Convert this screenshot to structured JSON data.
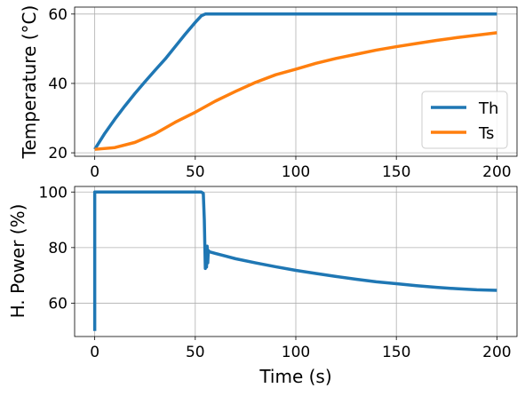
{
  "chart_data": [
    {
      "type": "line",
      "title": "",
      "xlabel": "",
      "ylabel": "Temperature (°C)",
      "xlim": [
        -10,
        210
      ],
      "ylim": [
        19,
        62
      ],
      "xticks": [
        0,
        50,
        100,
        150,
        200
      ],
      "yticks": [
        20,
        40,
        60
      ],
      "grid": true,
      "legend": "lower-right",
      "series": [
        {
          "name": "Th",
          "color": "#1f77b4",
          "points": [
            [
              0,
              21
            ],
            [
              5,
              25.6
            ],
            [
              10,
              29.7
            ],
            [
              15,
              33.5
            ],
            [
              20,
              37.1
            ],
            [
              25,
              40.5
            ],
            [
              30,
              43.8
            ],
            [
              35,
              47.0
            ],
            [
              40,
              50.6
            ],
            [
              45,
              54.2
            ],
            [
              50,
              57.6
            ],
            [
              53,
              59.5
            ],
            [
              55,
              60
            ],
            [
              100,
              60
            ],
            [
              150,
              60
            ],
            [
              200,
              60
            ]
          ]
        },
        {
          "name": "Ts",
          "color": "#ff7f0e",
          "points": [
            [
              0,
              21
            ],
            [
              10,
              21.5
            ],
            [
              20,
              23
            ],
            [
              30,
              25.5
            ],
            [
              40,
              28.8
            ],
            [
              50,
              31.7
            ],
            [
              60,
              34.9
            ],
            [
              70,
              37.7
            ],
            [
              80,
              40.3
            ],
            [
              90,
              42.5
            ],
            [
              100,
              44.1
            ],
            [
              110,
              45.8
            ],
            [
              120,
              47.2
            ],
            [
              130,
              48.4
            ],
            [
              140,
              49.6
            ],
            [
              150,
              50.6
            ],
            [
              160,
              51.5
            ],
            [
              170,
              52.4
            ],
            [
              180,
              53.2
            ],
            [
              190,
              53.9
            ],
            [
              200,
              54.6
            ]
          ]
        }
      ]
    },
    {
      "type": "line",
      "title": "",
      "xlabel": "Time (s)",
      "ylabel": "H. Power (%)",
      "xlim": [
        -10,
        210
      ],
      "ylim": [
        48,
        102
      ],
      "xticks": [
        0,
        50,
        100,
        150,
        200
      ],
      "yticks": [
        60,
        80,
        100
      ],
      "grid": true,
      "series": [
        {
          "name": "",
          "color": "#1f77b4",
          "points": [
            [
              0,
              50
            ],
            [
              0,
              100
            ],
            [
              53,
              100
            ],
            [
              54,
              99.5
            ],
            [
              54.5,
              90
            ],
            [
              55,
              72.5
            ],
            [
              55.3,
              80.5
            ],
            [
              55.6,
              73
            ],
            [
              55.9,
              80.5
            ],
            [
              56.2,
              74.5
            ],
            [
              56.5,
              79
            ],
            [
              57,
              78.5
            ],
            [
              60,
              77.9
            ],
            [
              70,
              76.0
            ],
            [
              80,
              74.5
            ],
            [
              90,
              73.1
            ],
            [
              100,
              71.8
            ],
            [
              110,
              70.7
            ],
            [
              120,
              69.6
            ],
            [
              130,
              68.6
            ],
            [
              140,
              67.7
            ],
            [
              150,
              67.0
            ],
            [
              160,
              66.3
            ],
            [
              170,
              65.7
            ],
            [
              180,
              65.2
            ],
            [
              190,
              64.8
            ],
            [
              200,
              64.6
            ]
          ]
        }
      ]
    }
  ]
}
